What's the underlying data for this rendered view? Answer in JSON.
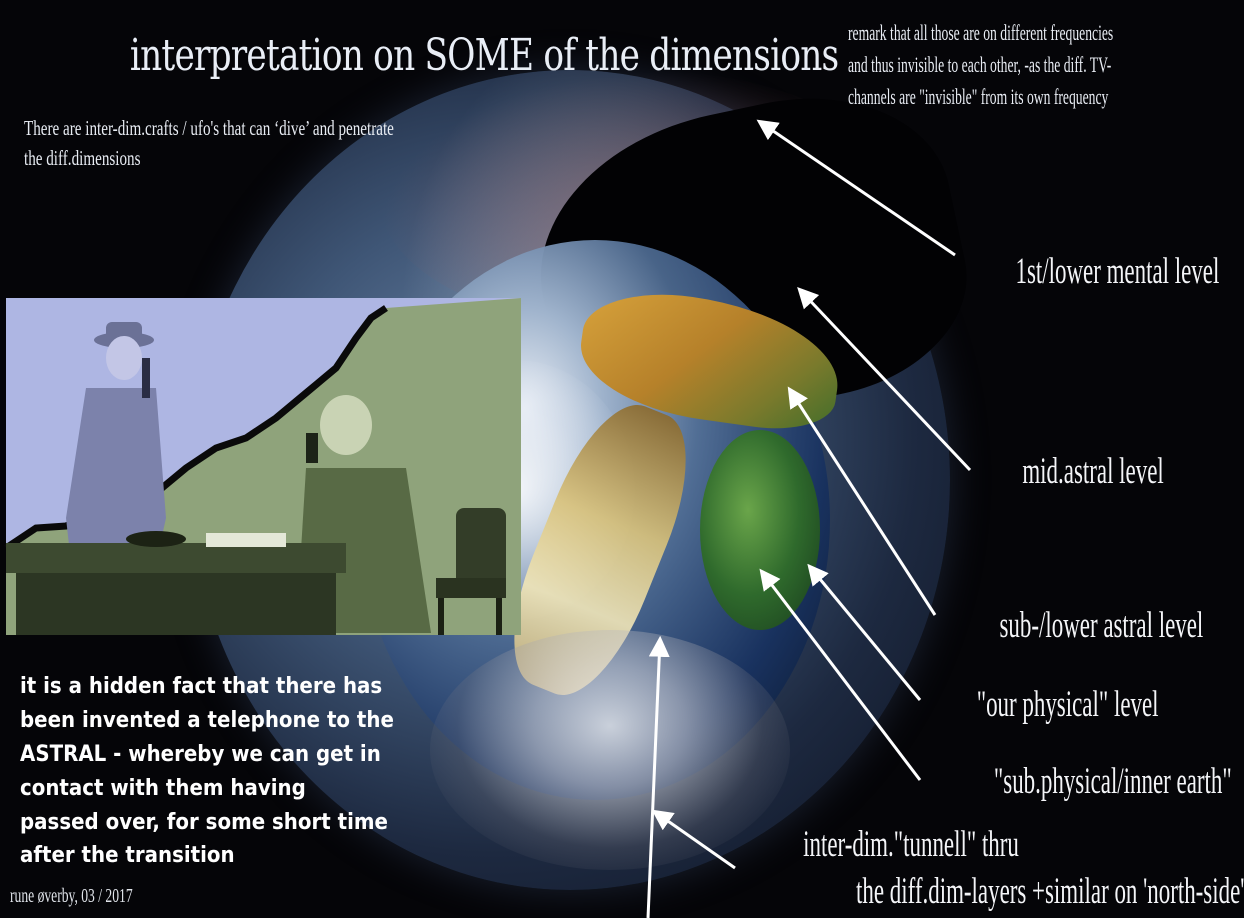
{
  "title": "interpretation on SOME of the dimensions",
  "intro": {
    "line1": "There are  inter-dim.crafts / ufo's that can ‘dive’ and penetrate",
    "line2": "the diff.dimensions"
  },
  "remark": {
    "line1": "remark that all those are on different frequencies",
    "line2": "and thus invisible to each other, -as the diff. TV-",
    "line3": "channels are \"invisible\" from its own frequency"
  },
  "levels": {
    "mental": "1st/lower mental level",
    "mid_astral": "mid.astral  level",
    "sub_astral": "sub-/lower astral level",
    "physical": "\"our physical\" level",
    "sub_physical": "\"sub.physical/inner earth\"",
    "tunnel_line1": "inter-dim.\"tunnell\" thru",
    "tunnel_line2": "the diff.dim-layers  +similar on 'north-side'"
  },
  "hidden_fact": {
    "line1": "it is a hidden fact that there has",
    "line2": "been invented a telephone to the",
    "line3": "ASTRAL - whereby we can get in",
    "line4": "contact with them having",
    "line5": "passed over, for some short time",
    "line6": "after the transition"
  },
  "signature": "rune øverby, 03 / 2017",
  "colors": {
    "background": "#050508",
    "text": "#ffffff",
    "arrow": "#ffffff",
    "photo_left_tint": "#b1b8e4",
    "photo_right_tint": "#8ea27a"
  },
  "icons": {
    "arrows": "arrow-pointer-icon"
  }
}
